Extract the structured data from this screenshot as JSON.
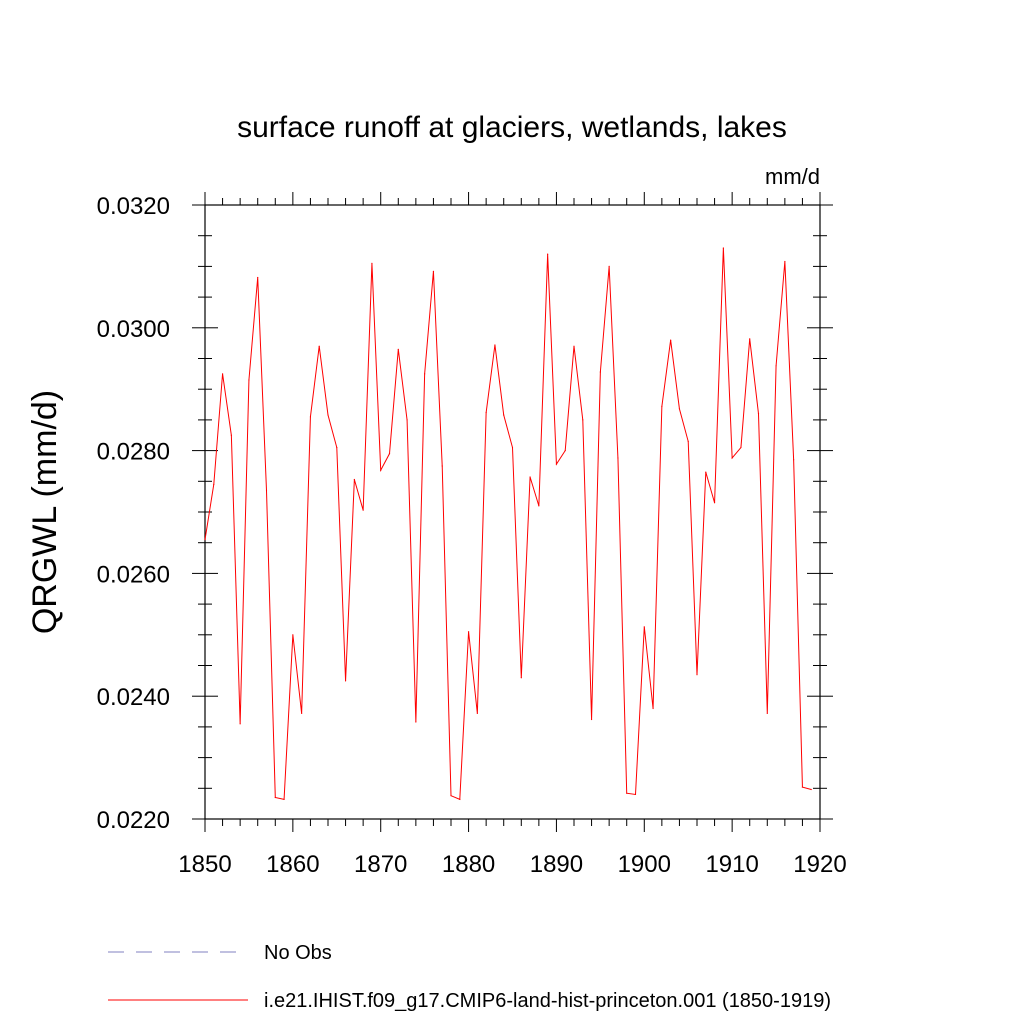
{
  "chart_data": {
    "type": "line",
    "title": "surface runoff at glaciers, wetlands, lakes",
    "units": "mm/d",
    "ylabel": "QRGWL  (mm/d)",
    "xlabel": "",
    "xlim": [
      1850,
      1920
    ],
    "ylim": [
      0.022,
      0.032
    ],
    "x_ticks": [
      1850,
      1860,
      1870,
      1880,
      1890,
      1900,
      1910,
      1920
    ],
    "x_tick_labels": [
      "1850",
      "1860",
      "1870",
      "1880",
      "1890",
      "1900",
      "1910",
      "1920"
    ],
    "y_ticks": [
      0.022,
      0.024,
      0.026,
      0.028,
      0.03,
      0.032
    ],
    "y_tick_labels": [
      "0.0220",
      "0.0240",
      "0.0260",
      "0.0280",
      "0.0300",
      "0.0320"
    ],
    "grid": false,
    "legend_position": "bottom",
    "series": [
      {
        "name": "i.e21.IHIST.f09_g17.CMIP6-land-hist-princeton.001 (1850-1919)",
        "color": "#ff0000",
        "style": "solid",
        "x": [
          1850,
          1851,
          1852,
          1853,
          1854,
          1855,
          1856,
          1857,
          1858,
          1859,
          1860,
          1861,
          1862,
          1863,
          1864,
          1865,
          1866,
          1867,
          1868,
          1869,
          1870,
          1871,
          1872,
          1873,
          1874,
          1875,
          1876,
          1877,
          1878,
          1879,
          1880,
          1881,
          1882,
          1883,
          1884,
          1885,
          1886,
          1887,
          1888,
          1889,
          1890,
          1891,
          1892,
          1893,
          1894,
          1895,
          1896,
          1897,
          1898,
          1899,
          1900,
          1901,
          1902,
          1903,
          1904,
          1905,
          1906,
          1907,
          1908,
          1909,
          1910,
          1911,
          1912,
          1913,
          1914,
          1915,
          1916,
          1917,
          1918,
          1919
        ],
        "values": [
          0.02655,
          0.02745,
          0.02925,
          0.02825,
          0.02355,
          0.02915,
          0.03082,
          0.02735,
          0.02235,
          0.02232,
          0.025,
          0.02372,
          0.02855,
          0.0297,
          0.02858,
          0.02805,
          0.02425,
          0.02753,
          0.02703,
          0.03105,
          0.02768,
          0.02795,
          0.02965,
          0.0285,
          0.02358,
          0.02925,
          0.03092,
          0.02775,
          0.02238,
          0.02232,
          0.02505,
          0.02372,
          0.02862,
          0.02972,
          0.02858,
          0.02805,
          0.0243,
          0.02757,
          0.0271,
          0.0312,
          0.02778,
          0.028,
          0.0297,
          0.0285,
          0.02362,
          0.02928,
          0.031,
          0.02788,
          0.02242,
          0.0224,
          0.02513,
          0.0238,
          0.02872,
          0.0298,
          0.02868,
          0.02815,
          0.02435,
          0.02765,
          0.02715,
          0.0313,
          0.02788,
          0.02805,
          0.02982,
          0.0286,
          0.02372,
          0.02938,
          0.03108,
          0.02785,
          0.02252,
          0.02248
        ]
      }
    ],
    "legend": [
      {
        "label": "No Obs",
        "color": "#8080c0",
        "style": "dashed"
      },
      {
        "label": "i.e21.IHIST.f09_g17.CMIP6-land-hist-princeton.001 (1850-1919)",
        "color": "#ff0000",
        "style": "solid"
      }
    ]
  }
}
